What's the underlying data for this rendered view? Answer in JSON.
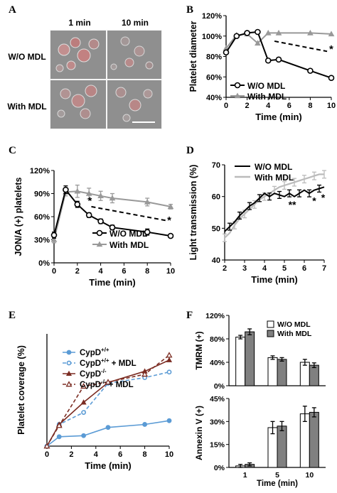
{
  "panel_letters": {
    "a": "A",
    "b": "B",
    "c": "C",
    "d": "D",
    "e": "E",
    "f": "F"
  },
  "micrograph": {
    "col_headers": [
      "1 min",
      "10 min"
    ],
    "row_labels": [
      "W/O MDL",
      "With MDL"
    ]
  },
  "colors": {
    "black": "#000000",
    "gray": "#999999",
    "light_gray": "#bbbbbb",
    "blue": "#5b9bd5",
    "dark_red": "#7b2c22",
    "bar_white": "#ffffff",
    "bar_gray": "#808080"
  },
  "chart_data": [
    {
      "panel": "B",
      "type": "line",
      "xlabel": "Time (min)",
      "ylabel": "Platelet diameter",
      "xlim": [
        0,
        10
      ],
      "ylim": [
        40,
        120
      ],
      "xticks": [
        "0",
        "2",
        "4",
        "6",
        "8",
        "10"
      ],
      "yticks": [
        "40%",
        "60%",
        "80%",
        "100%",
        "120%"
      ],
      "series": [
        {
          "name": "W/O MDL",
          "marker": "circle",
          "x": [
            0,
            1,
            2,
            3,
            4,
            5,
            8,
            10
          ],
          "y": [
            84,
            100,
            103,
            104,
            76,
            77,
            66,
            59
          ]
        },
        {
          "name": "With MDL",
          "marker": "triangle",
          "x": [
            0,
            1,
            2,
            3,
            4,
            5,
            8,
            10
          ],
          "y": [
            88,
            101,
            102,
            93,
            103,
            103,
            103,
            102
          ]
        }
      ],
      "annotations": [
        {
          "text": "*"
        }
      ]
    },
    {
      "panel": "C",
      "type": "line",
      "xlabel": "Time (min)",
      "ylabel": "JON/A (+) platelets",
      "xlim": [
        0,
        10
      ],
      "ylim": [
        0,
        120
      ],
      "xticks": [
        "0",
        "2",
        "4",
        "6",
        "8",
        "10"
      ],
      "yticks": [
        "0%",
        "30%",
        "60%",
        "90%",
        "120%"
      ],
      "series": [
        {
          "name": "W/O MDL",
          "marker": "circle",
          "x": [
            0,
            1,
            2,
            3,
            4,
            5,
            8,
            10
          ],
          "y": [
            36,
            95,
            76,
            62,
            54,
            46,
            40,
            35
          ],
          "err": [
            4,
            5,
            4,
            3,
            3,
            3,
            4,
            2
          ]
        },
        {
          "name": "With MDL",
          "marker": "triangle",
          "x": [
            0,
            1,
            2,
            3,
            4,
            5,
            8,
            10
          ],
          "y": [
            30,
            92,
            93,
            90,
            87,
            84,
            79,
            73
          ],
          "err": [
            4,
            5,
            8,
            7,
            6,
            6,
            5,
            3
          ]
        }
      ],
      "annotations": [
        {
          "text": "*"
        },
        {
          "text": "*"
        }
      ]
    },
    {
      "panel": "D",
      "type": "line",
      "xlabel": "Time (min)",
      "ylabel": "Light transmission (%)",
      "xlim": [
        2,
        7
      ],
      "ylim": [
        40,
        70
      ],
      "xticks": [
        "2",
        "3",
        "4",
        "5",
        "6",
        "7"
      ],
      "yticks": [
        "40",
        "50",
        "60",
        "70"
      ],
      "series": [
        {
          "name": "W/O MDL",
          "x": [
            2,
            2.25,
            2.5,
            2.75,
            3,
            3.25,
            3.5,
            3.75,
            4,
            4.25,
            4.5,
            4.75,
            5,
            5.25,
            5.5,
            5.75,
            6,
            6.25,
            6.5,
            6.75,
            7
          ],
          "y": [
            49,
            50.5,
            52,
            54,
            55.5,
            57,
            58,
            59.5,
            61,
            60,
            61,
            60.5,
            60,
            61,
            60,
            61,
            62,
            61,
            62,
            62.5,
            63
          ]
        },
        {
          "name": "With MDL",
          "x": [
            2,
            2.25,
            2.5,
            2.75,
            3,
            3.25,
            3.5,
            3.75,
            4,
            4.25,
            4.5,
            4.75,
            5,
            5.25,
            5.5,
            5.75,
            6,
            6.25,
            6.5,
            6.75,
            7
          ],
          "y": [
            47,
            48.5,
            51,
            53,
            54.5,
            56,
            57.5,
            59,
            60,
            61,
            62,
            63,
            63.5,
            64,
            64.5,
            65,
            65.5,
            66,
            66.5,
            67,
            67
          ]
        }
      ],
      "annotations": [
        {
          "text": "**"
        },
        {
          "text": "*"
        },
        {
          "text": "*"
        }
      ]
    },
    {
      "panel": "E",
      "type": "line",
      "xlabel": "Time (min)",
      "ylabel": "Platelet coverage (%)",
      "xlim": [
        0,
        10
      ],
      "ylim": [
        0,
        30
      ],
      "xticks": [
        "0",
        "2",
        "4",
        "6",
        "8",
        "10"
      ],
      "yticks": [],
      "series": [
        {
          "name": "CypD+/+",
          "x": [
            0,
            1,
            3,
            5,
            8,
            10
          ],
          "y": [
            0,
            2.5,
            2.8,
            5.0,
            5.8,
            6.8
          ]
        },
        {
          "name": "CypD+/+ + MDL",
          "x": [
            0,
            1,
            3,
            5,
            8,
            10
          ],
          "y": [
            0,
            5.8,
            9.0,
            16.8,
            18.3,
            19.8
          ]
        },
        {
          "name": "CypD-/-",
          "x": [
            0,
            1,
            3,
            5,
            8,
            10
          ],
          "y": [
            0,
            5.8,
            11.7,
            17.0,
            20.0,
            23.0
          ]
        },
        {
          "name": "CypD-/- + MDL",
          "x": [
            0,
            1,
            3,
            5,
            8,
            10
          ],
          "y": [
            0,
            5.5,
            16.0,
            17.1,
            19.2,
            24.3
          ]
        }
      ],
      "legend_labels": [
        {
          "base": "CypD",
          "sup": "+/+",
          "tail": ""
        },
        {
          "base": "CypD",
          "sup": "+/+",
          "tail": " + MDL"
        },
        {
          "base": "CypD",
          "sup": "-/-",
          "tail": ""
        },
        {
          "base": "CypD",
          "sup": "-/-",
          "tail": " + MDL"
        }
      ]
    },
    {
      "panel": "F-top",
      "type": "bar",
      "ylabel": "TMRM (+)",
      "categories": [
        "1",
        "5",
        "10"
      ],
      "ylim": [
        0,
        120
      ],
      "yticks": [
        "0%",
        "40%",
        "80%",
        "120%"
      ],
      "series": [
        {
          "name": "W/O MDL",
          "values": [
            83,
            48,
            40
          ],
          "err": [
            3,
            3,
            5
          ]
        },
        {
          "name": "With MDL",
          "values": [
            92,
            45,
            35
          ],
          "err": [
            5,
            3,
            4
          ]
        }
      ]
    },
    {
      "panel": "F-bottom",
      "type": "bar",
      "xlabel": "Time (min)",
      "ylabel": "Annexin V (+)",
      "categories": [
        "1",
        "5",
        "10"
      ],
      "ylim": [
        0,
        45
      ],
      "yticks": [
        "0%",
        "15%",
        "30%",
        "45%"
      ],
      "series": [
        {
          "name": "W/O MDL",
          "values": [
            1,
            26,
            35
          ],
          "err": [
            1,
            4,
            5
          ]
        },
        {
          "name": "With MDL",
          "values": [
            2,
            27,
            36
          ],
          "err": [
            1,
            3,
            3
          ]
        }
      ]
    }
  ]
}
